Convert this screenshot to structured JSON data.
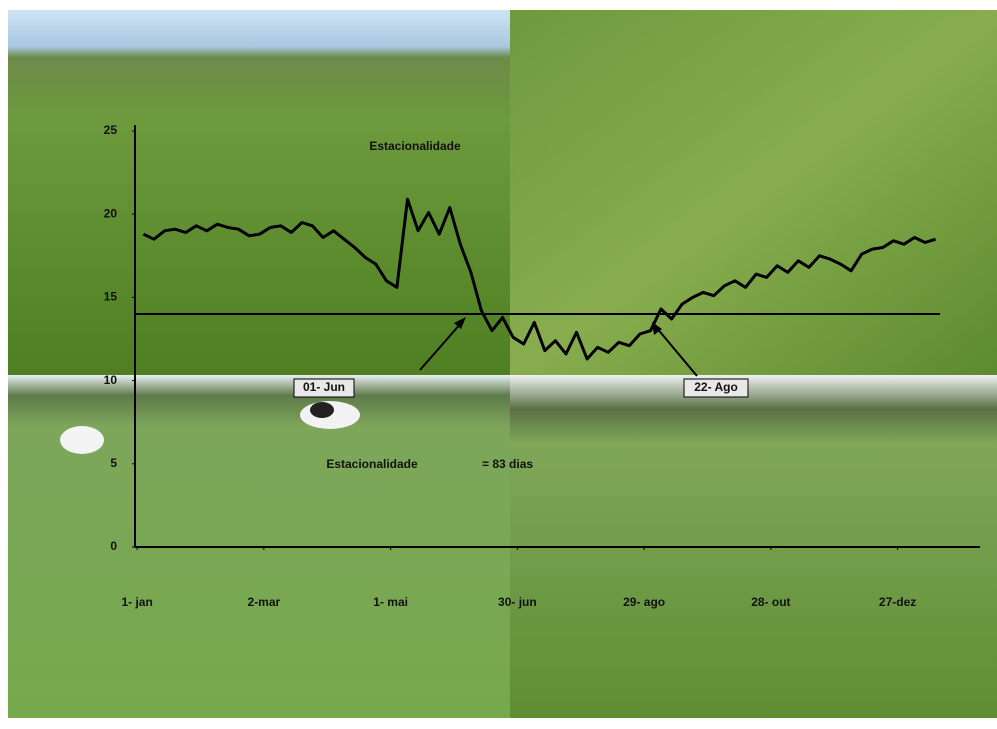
{
  "chart_data": {
    "type": "line",
    "title": "Estacionalidade",
    "annotations": [
      "01- Jun",
      "22- Ago",
      "Estacionalidade",
      "= 83 dias"
    ],
    "x": [
      4,
      9,
      14,
      19,
      24,
      29,
      34,
      39,
      44,
      49,
      54,
      59,
      64,
      69,
      74,
      79,
      84,
      89,
      94,
      99,
      104,
      109,
      114,
      119,
      124,
      129,
      134,
      139,
      144,
      149,
      154,
      159,
      164,
      169,
      174,
      179,
      184,
      189,
      194,
      199,
      204,
      209,
      214,
      219,
      224,
      229,
      234,
      239,
      244,
      249,
      254,
      259,
      264,
      269,
      274,
      279,
      284,
      289,
      294,
      299,
      304,
      309,
      314,
      319,
      324,
      329,
      334,
      339,
      344,
      349,
      354,
      359,
      364,
      369,
      374,
      379
    ],
    "series": [
      {
        "color": "#000000",
        "values": [
          18.8,
          18.5,
          19.0,
          19.1,
          18.9,
          19.3,
          19.0,
          19.4,
          19.2,
          19.1,
          18.7,
          18.8,
          19.2,
          19.3,
          18.9,
          19.5,
          19.3,
          18.6,
          19.0,
          18.5,
          18.0,
          17.4,
          17.0,
          16.0,
          15.6,
          20.9,
          19.0,
          20.1,
          18.8,
          20.4,
          18.2,
          16.5,
          14.2,
          13.0,
          13.8,
          12.6,
          12.2,
          13.5,
          11.8,
          12.4,
          11.6,
          12.9,
          11.3,
          12.0,
          11.7,
          12.3,
          12.1,
          12.8,
          13.0,
          14.3,
          13.7,
          14.6,
          15.0,
          15.3,
          15.1,
          15.7,
          16.0,
          15.6,
          16.4,
          16.2,
          16.9,
          16.5,
          17.2,
          16.8,
          17.5,
          17.3,
          17.0,
          16.6,
          17.6,
          17.9,
          18.0,
          18.4,
          18.2,
          18.6,
          18.3,
          18.5
        ]
      }
    ],
    "threshold": 14,
    "xlim": [
      0,
      400
    ],
    "xticks": [
      {
        "value": 1,
        "label": "1- jan"
      },
      {
        "value": 61,
        "label": "2-mar"
      },
      {
        "value": 121,
        "label": "1- mai"
      },
      {
        "value": 181,
        "label": "30- jun"
      },
      {
        "value": 241,
        "label": "29- ago"
      },
      {
        "value": 301,
        "label": "28- out"
      },
      {
        "value": 361,
        "label": "27-dez"
      }
    ],
    "ylim": [
      0,
      25
    ],
    "yticks": [
      0,
      5,
      10,
      15,
      20,
      25
    ]
  }
}
